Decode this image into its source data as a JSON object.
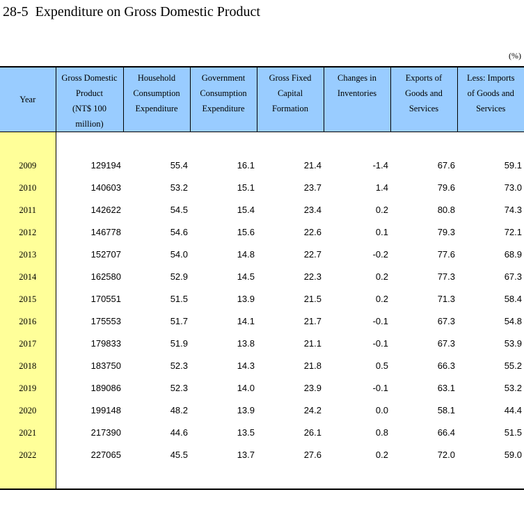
{
  "title": "28-5  Expenditure on Gross Domestic Product",
  "unit": "(%)",
  "headers": {
    "year": "Year",
    "gdp": [
      "Gross Domestic",
      "Product",
      "(NT$ 100",
      "million)"
    ],
    "household": [
      "Household",
      "Consumption",
      "Expenditure"
    ],
    "government": [
      "Government",
      "Consumption",
      "Expenditure"
    ],
    "gfcf": [
      "Gross Fixed",
      "Capital",
      "Formation"
    ],
    "inventories": [
      "Changes in",
      "Inventories"
    ],
    "exports": [
      "Exports of",
      "Goods and",
      "Services"
    ],
    "imports": [
      "Less: Imports",
      "of Goods and",
      "Services"
    ]
  },
  "rows": [
    [
      "2009",
      "129194",
      "55.4",
      "16.1",
      "21.4",
      "-1.4",
      "67.6",
      "59.1"
    ],
    [
      "2010",
      "140603",
      "53.2",
      "15.1",
      "23.7",
      "1.4",
      "79.6",
      "73.0"
    ],
    [
      "2011",
      "142622",
      "54.5",
      "15.4",
      "23.4",
      "0.2",
      "80.8",
      "74.3"
    ],
    [
      "2012",
      "146778",
      "54.6",
      "15.6",
      "22.6",
      "0.1",
      "79.3",
      "72.1"
    ],
    [
      "2013",
      "152707",
      "54.0",
      "14.8",
      "22.7",
      "-0.2",
      "77.6",
      "68.9"
    ],
    [
      "2014",
      "162580",
      "52.9",
      "14.5",
      "22.3",
      "0.2",
      "77.3",
      "67.3"
    ],
    [
      "2015",
      "170551",
      "51.5",
      "13.9",
      "21.5",
      "0.2",
      "71.3",
      "58.4"
    ],
    [
      "2016",
      "175553",
      "51.7",
      "14.1",
      "21.7",
      "-0.1",
      "67.3",
      "54.8"
    ],
    [
      "2017",
      "179833",
      "51.9",
      "13.8",
      "21.1",
      "-0.1",
      "67.3",
      "53.9"
    ],
    [
      "2018",
      "183750",
      "52.3",
      "14.3",
      "21.8",
      "0.5",
      "66.3",
      "55.2"
    ],
    [
      "2019",
      "189086",
      "52.3",
      "14.0",
      "23.9",
      "-0.1",
      "63.1",
      "53.2"
    ],
    [
      "2020",
      "199148",
      "48.2",
      "13.9",
      "24.2",
      "0.0",
      "58.1",
      "44.4"
    ],
    [
      "2021",
      "217390",
      "44.6",
      "13.5",
      "26.1",
      "0.8",
      "66.4",
      "51.5"
    ],
    [
      "2022",
      "227065",
      "45.5",
      "13.7",
      "27.6",
      "0.2",
      "72.0",
      "59.0"
    ]
  ]
}
